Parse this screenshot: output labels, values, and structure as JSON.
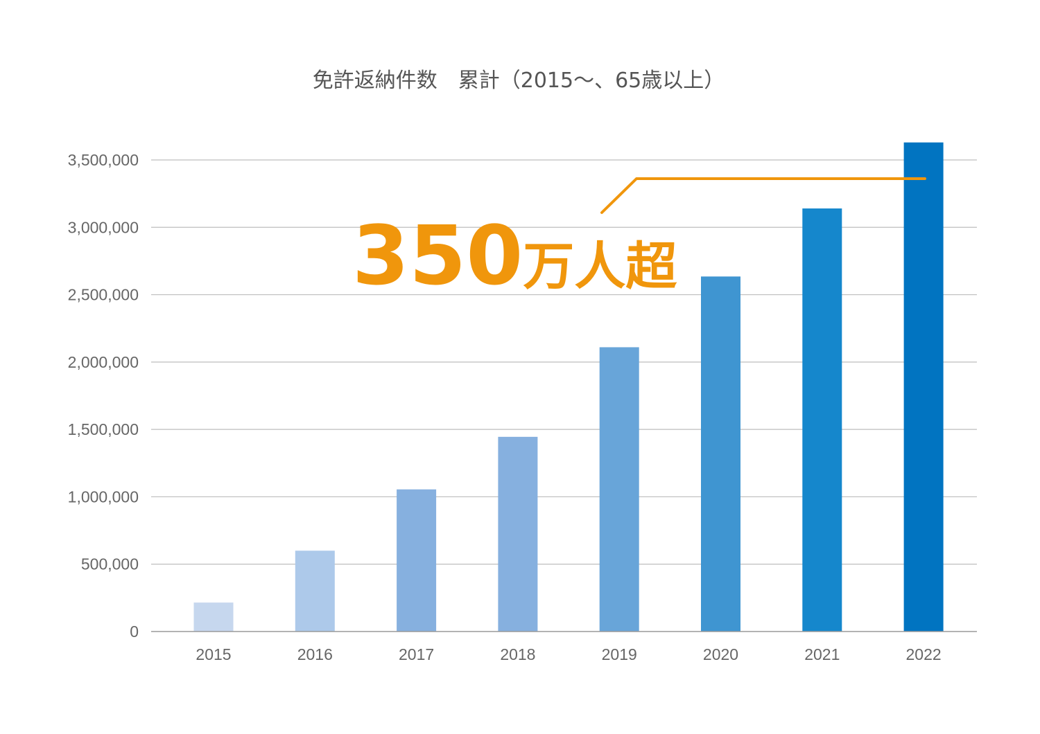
{
  "chart_data": {
    "type": "bar",
    "title": "免許返納件数　累計（2015～、65歳以上）",
    "xlabel": "",
    "ylabel": "",
    "categories": [
      "2015",
      "2016",
      "2017",
      "2018",
      "2019",
      "2020",
      "2021",
      "2022"
    ],
    "values": [
      215000,
      600000,
      1055000,
      1445000,
      2110000,
      2635000,
      3140000,
      3630000
    ],
    "bar_colors": [
      "#c6d7ee",
      "#adc9ea",
      "#86b0df",
      "#86b0df",
      "#68a5d9",
      "#3f95d1",
      "#1587cc",
      "#0174c1"
    ],
    "ylim": [
      0,
      3500000
    ],
    "yticks": [
      0,
      500000,
      1000000,
      1500000,
      2000000,
      2500000,
      3000000,
      3500000
    ],
    "ytick_labels": [
      "0",
      "500,000",
      "1,000,000",
      "1,500,000",
      "2,000,000",
      "2,500,000",
      "3,000,000",
      "3,500,000"
    ],
    "grid": true,
    "annotation": {
      "number": "350",
      "unit": "万人超",
      "target_category": "2022",
      "reference_value": 3500000,
      "color": "#f0960c"
    }
  }
}
